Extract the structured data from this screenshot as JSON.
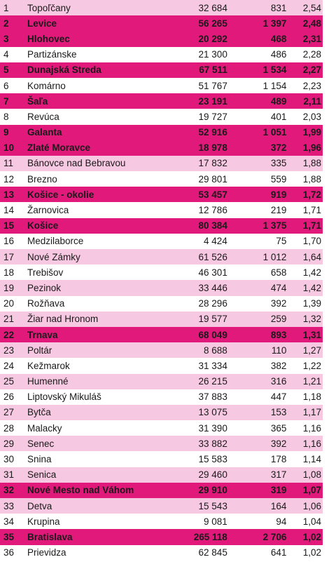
{
  "table": {
    "rows": [
      {
        "rank": "1",
        "name": "Topoľčany",
        "population": "32 684",
        "count": "831",
        "rate": "2,54",
        "highlight": false
      },
      {
        "rank": "2",
        "name": "Levice",
        "population": "56 265",
        "count": "1 397",
        "rate": "2,48",
        "highlight": true
      },
      {
        "rank": "3",
        "name": "Hlohovec",
        "population": "20 292",
        "count": "468",
        "rate": "2,31",
        "highlight": true
      },
      {
        "rank": "4",
        "name": "Partizánske",
        "population": "21 300",
        "count": "486",
        "rate": "2,28",
        "highlight": false
      },
      {
        "rank": "5",
        "name": "Dunajská Streda",
        "population": "67 511",
        "count": "1 534",
        "rate": "2,27",
        "highlight": true
      },
      {
        "rank": "6",
        "name": "Komárno",
        "population": "51 767",
        "count": "1 154",
        "rate": "2,23",
        "highlight": false
      },
      {
        "rank": "7",
        "name": "Šaľa",
        "population": "23 191",
        "count": "489",
        "rate": "2,11",
        "highlight": true
      },
      {
        "rank": "8",
        "name": "Revúca",
        "population": "19 727",
        "count": "401",
        "rate": "2,03",
        "highlight": false
      },
      {
        "rank": "9",
        "name": "Galanta",
        "population": "52 916",
        "count": "1 051",
        "rate": "1,99",
        "highlight": true
      },
      {
        "rank": "10",
        "name": "Zlaté Moravce",
        "population": "18 978",
        "count": "372",
        "rate": "1,96",
        "highlight": true
      },
      {
        "rank": "11",
        "name": "Bánovce nad Bebravou",
        "population": "17 832",
        "count": "335",
        "rate": "1,88",
        "highlight": false
      },
      {
        "rank": "12",
        "name": "Brezno",
        "population": "29 801",
        "count": "559",
        "rate": "1,88",
        "highlight": false
      },
      {
        "rank": "13",
        "name": "Košice - okolie",
        "population": "53 457",
        "count": "919",
        "rate": "1,72",
        "highlight": true
      },
      {
        "rank": "14",
        "name": "Žarnovica",
        "population": "12 786",
        "count": "219",
        "rate": "1,71",
        "highlight": false
      },
      {
        "rank": "15",
        "name": "Košice",
        "population": "80 384",
        "count": "1 375",
        "rate": "1,71",
        "highlight": true
      },
      {
        "rank": "16",
        "name": "Medzilaborce",
        "population": "4 424",
        "count": "75",
        "rate": "1,70",
        "highlight": false
      },
      {
        "rank": "17",
        "name": "Nové Zámky",
        "population": "61 526",
        "count": "1 012",
        "rate": "1,64",
        "highlight": false
      },
      {
        "rank": "18",
        "name": "Trebišov",
        "population": "46 301",
        "count": "658",
        "rate": "1,42",
        "highlight": false
      },
      {
        "rank": "19",
        "name": "Pezinok",
        "population": "33 446",
        "count": "474",
        "rate": "1,42",
        "highlight": false
      },
      {
        "rank": "20",
        "name": "Rožňava",
        "population": "28 296",
        "count": "392",
        "rate": "1,39",
        "highlight": false
      },
      {
        "rank": "21",
        "name": "Žiar nad Hronom",
        "population": "19 577",
        "count": "259",
        "rate": "1,32",
        "highlight": false
      },
      {
        "rank": "22",
        "name": "Trnava",
        "population": "68 049",
        "count": "893",
        "rate": "1,31",
        "highlight": true
      },
      {
        "rank": "23",
        "name": "Poltár",
        "population": "8 688",
        "count": "110",
        "rate": "1,27",
        "highlight": false
      },
      {
        "rank": "24",
        "name": "Kežmarok",
        "population": "31 334",
        "count": "382",
        "rate": "1,22",
        "highlight": false
      },
      {
        "rank": "25",
        "name": "Humenné",
        "population": "26 215",
        "count": "316",
        "rate": "1,21",
        "highlight": false
      },
      {
        "rank": "26",
        "name": "Liptovský Mikuláš",
        "population": "37 883",
        "count": "447",
        "rate": "1,18",
        "highlight": false
      },
      {
        "rank": "27",
        "name": "Bytča",
        "population": "13 075",
        "count": "153",
        "rate": "1,17",
        "highlight": false
      },
      {
        "rank": "28",
        "name": "Malacky",
        "population": "31 390",
        "count": "365",
        "rate": "1,16",
        "highlight": false
      },
      {
        "rank": "29",
        "name": "Senec",
        "population": "33 882",
        "count": "392",
        "rate": "1,16",
        "highlight": false
      },
      {
        "rank": "30",
        "name": "Snina",
        "population": "15 583",
        "count": "178",
        "rate": "1,14",
        "highlight": false
      },
      {
        "rank": "31",
        "name": "Senica",
        "population": "29 460",
        "count": "317",
        "rate": "1,08",
        "highlight": false
      },
      {
        "rank": "32",
        "name": "Nové Mesto nad Váhom",
        "population": "29 910",
        "count": "319",
        "rate": "1,07",
        "highlight": true
      },
      {
        "rank": "33",
        "name": "Detva",
        "population": "15 543",
        "count": "164",
        "rate": "1,06",
        "highlight": false
      },
      {
        "rank": "34",
        "name": "Krupina",
        "population": "9 081",
        "count": "94",
        "rate": "1,04",
        "highlight": false
      },
      {
        "rank": "35",
        "name": "Bratislava",
        "population": "265 118",
        "count": "2 706",
        "rate": "1,02",
        "highlight": true
      },
      {
        "rank": "36",
        "name": "Prievidza",
        "population": "62 845",
        "count": "641",
        "rate": "1,02",
        "highlight": false
      }
    ]
  },
  "colors": {
    "highlight": "#e0197a",
    "stripe_light": "#f7c8e1",
    "stripe_white": "#ffffff"
  }
}
